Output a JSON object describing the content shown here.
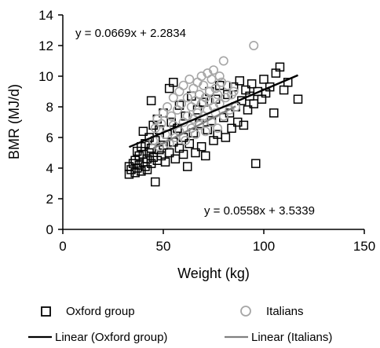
{
  "chart_data": {
    "type": "scatter",
    "xlabel": "Weight (kg)",
    "ylabel": "BMR (MJ/d)",
    "xlim": [
      0,
      150
    ],
    "ylim": [
      0,
      14
    ],
    "x_ticks": [
      0,
      50,
      100,
      150
    ],
    "y_ticks": [
      0,
      2,
      4,
      6,
      8,
      10,
      12,
      14
    ],
    "grid": false,
    "legend_position": "bottom",
    "series": [
      {
        "name": "Oxford group",
        "marker": "open-square",
        "color": "#000000",
        "points": [
          [
            33,
            3.6
          ],
          [
            33,
            4.1
          ],
          [
            34,
            3.9
          ],
          [
            35,
            4.3
          ],
          [
            36,
            3.7
          ],
          [
            36,
            4.5
          ],
          [
            37,
            4.0
          ],
          [
            37,
            5.1
          ],
          [
            38,
            4.2
          ],
          [
            38,
            4.8
          ],
          [
            39,
            3.8
          ],
          [
            39,
            5.4
          ],
          [
            40,
            4.4
          ],
          [
            40,
            4.9
          ],
          [
            40,
            6.4
          ],
          [
            41,
            4.1
          ],
          [
            41,
            5.6
          ],
          [
            42,
            4.6
          ],
          [
            42,
            3.9
          ],
          [
            43,
            5.0
          ],
          [
            43,
            6.0
          ],
          [
            44,
            4.3
          ],
          [
            44,
            5.3
          ],
          [
            44,
            8.4
          ],
          [
            45,
            4.7
          ],
          [
            45,
            6.8
          ],
          [
            46,
            3.1
          ],
          [
            46,
            5.8
          ],
          [
            47,
            4.5
          ],
          [
            47,
            7.2
          ],
          [
            48,
            5.2
          ],
          [
            48,
            6.5
          ],
          [
            49,
            4.8
          ],
          [
            50,
            5.5
          ],
          [
            50,
            7.6
          ],
          [
            51,
            4.4
          ],
          [
            52,
            6.2
          ],
          [
            53,
            5.0
          ],
          [
            53,
            9.2
          ],
          [
            54,
            7.0
          ],
          [
            55,
            5.7
          ],
          [
            55,
            9.6
          ],
          [
            56,
            4.6
          ],
          [
            57,
            6.6
          ],
          [
            58,
            5.3
          ],
          [
            58,
            8.1
          ],
          [
            60,
            4.9
          ],
          [
            60,
            6.0
          ],
          [
            61,
            7.4
          ],
          [
            62,
            4.1
          ],
          [
            63,
            5.6
          ],
          [
            64,
            8.7
          ],
          [
            65,
            6.3
          ],
          [
            66,
            5.0
          ],
          [
            67,
            7.8
          ],
          [
            68,
            6.9
          ],
          [
            69,
            5.4
          ],
          [
            70,
            8.3
          ],
          [
            71,
            4.8
          ],
          [
            72,
            6.5
          ],
          [
            73,
            9.0
          ],
          [
            74,
            7.1
          ],
          [
            75,
            5.8
          ],
          [
            76,
            8.5
          ],
          [
            77,
            6.2
          ],
          [
            78,
            9.4
          ],
          [
            80,
            7.3
          ],
          [
            81,
            6.0
          ],
          [
            82,
            8.8
          ],
          [
            83,
            7.6
          ],
          [
            84,
            6.6
          ],
          [
            85,
            9.3
          ],
          [
            86,
            8.0
          ],
          [
            87,
            7.0
          ],
          [
            88,
            9.7
          ],
          [
            89,
            8.4
          ],
          [
            90,
            6.8
          ],
          [
            91,
            9.1
          ],
          [
            92,
            7.8
          ],
          [
            93,
            8.7
          ],
          [
            94,
            9.5
          ],
          [
            95,
            8.2
          ],
          [
            96,
            4.3
          ],
          [
            97,
            9.0
          ],
          [
            99,
            8.5
          ],
          [
            100,
            9.8
          ],
          [
            101,
            8.9
          ],
          [
            103,
            9.3
          ],
          [
            105,
            7.6
          ],
          [
            106,
            10.2
          ],
          [
            108,
            10.6
          ],
          [
            110,
            9.1
          ],
          [
            112,
            9.6
          ],
          [
            117,
            8.5
          ]
        ],
        "trendline": {
          "name": "Linear (Oxford group)",
          "slope": 0.0558,
          "intercept": 3.5339,
          "x_range": [
            33,
            117
          ],
          "color": "#000000"
        }
      },
      {
        "name": "Italians",
        "marker": "open-circle",
        "color": "#a6a6a6",
        "points": [
          [
            45,
            5.8
          ],
          [
            46,
            6.6
          ],
          [
            47,
            7.2
          ],
          [
            48,
            5.4
          ],
          [
            49,
            6.9
          ],
          [
            50,
            7.6
          ],
          [
            51,
            6.2
          ],
          [
            52,
            8.0
          ],
          [
            53,
            5.6
          ],
          [
            54,
            7.4
          ],
          [
            55,
            6.8
          ],
          [
            55,
            8.6
          ],
          [
            56,
            6.0
          ],
          [
            57,
            7.8
          ],
          [
            58,
            9.0
          ],
          [
            58,
            6.4
          ],
          [
            59,
            8.2
          ],
          [
            60,
            7.0
          ],
          [
            60,
            9.4
          ],
          [
            61,
            5.8
          ],
          [
            62,
            8.6
          ],
          [
            62,
            7.4
          ],
          [
            63,
            9.8
          ],
          [
            64,
            6.6
          ],
          [
            64,
            8.0
          ],
          [
            65,
            7.2
          ],
          [
            65,
            9.2
          ],
          [
            66,
            8.4
          ],
          [
            66,
            6.2
          ],
          [
            67,
            9.6
          ],
          [
            67,
            7.6
          ],
          [
            68,
            8.8
          ],
          [
            68,
            6.8
          ],
          [
            69,
            10.0
          ],
          [
            69,
            8.2
          ],
          [
            70,
            7.4
          ],
          [
            70,
            9.4
          ],
          [
            71,
            8.6
          ],
          [
            71,
            6.4
          ],
          [
            72,
            10.2
          ],
          [
            72,
            7.8
          ],
          [
            73,
            9.0
          ],
          [
            73,
            8.4
          ],
          [
            74,
            7.0
          ],
          [
            74,
            9.8
          ],
          [
            75,
            8.0
          ],
          [
            75,
            10.4
          ],
          [
            76,
            7.6
          ],
          [
            76,
            9.2
          ],
          [
            77,
            8.8
          ],
          [
            77,
            6.6
          ],
          [
            78,
            10.0
          ],
          [
            78,
            8.2
          ],
          [
            79,
            9.6
          ],
          [
            80,
            7.4
          ],
          [
            80,
            11.0
          ],
          [
            81,
            8.6
          ],
          [
            82,
            9.4
          ],
          [
            83,
            7.8
          ],
          [
            84,
            8.8
          ],
          [
            85,
            9.0
          ],
          [
            86,
            8.0
          ],
          [
            95,
            12.0
          ]
        ],
        "trendline": {
          "name": "Linear (Italians)",
          "slope": 0.0669,
          "intercept": 2.2834,
          "x_range": [
            45,
            86
          ],
          "color": "#808080"
        }
      }
    ],
    "annotations": [
      {
        "text": "y = 0.0669x + 2.2834",
        "anchor": "top-left"
      },
      {
        "text": "y = 0.0558x + 3.5339",
        "anchor": "bottom-right"
      }
    ]
  }
}
